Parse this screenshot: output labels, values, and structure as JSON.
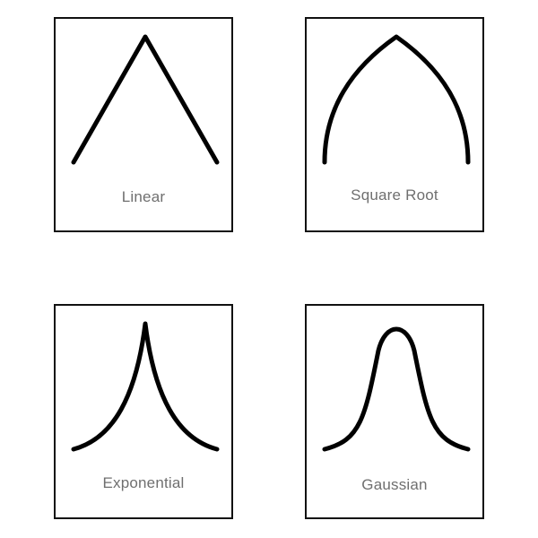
{
  "cards": [
    {
      "label": "Linear"
    },
    {
      "label": "Square Root"
    },
    {
      "label": "Exponential"
    },
    {
      "label": "Gaussian"
    }
  ],
  "colors": {
    "stroke": "#000000",
    "border": "#111111",
    "label": "#6f6f6f",
    "background": "#ffffff"
  }
}
